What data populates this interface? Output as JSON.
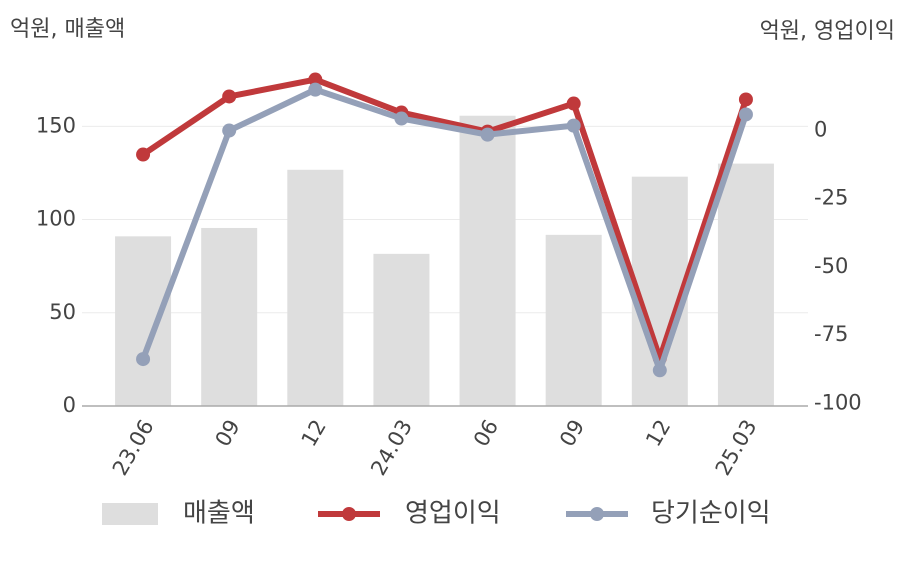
{
  "chart_data": {
    "type": "bar-line",
    "y_axis_label": "억원, 매출액",
    "y2_axis_label": "억원, 영업이익",
    "categories": [
      "23.06",
      "09",
      "12",
      "24.03",
      "06",
      "09",
      "12",
      "25.03"
    ],
    "series": [
      {
        "name": "매출액",
        "type": "bar",
        "color": "#dedede",
        "values": [
          91,
          95.5,
          126.7,
          81.6,
          155.7,
          91.8,
          123,
          130
        ]
      },
      {
        "name": "영업이익",
        "type": "line",
        "axis": "y2",
        "color": "#c0393b",
        "values": [
          -8.8,
          12.5,
          18.7,
          6.6,
          -0.4,
          9.9,
          -83.5,
          11.4
        ]
      },
      {
        "name": "당기순이익",
        "type": "line",
        "axis": "y2",
        "color": "#94a0b8",
        "values": [
          -83.8,
          0,
          15,
          4.4,
          -1.5,
          1.8,
          -87.9,
          5.9
        ]
      }
    ],
    "ylim": [
      0,
      177
    ],
    "yticks": [
      0,
      50,
      100,
      150
    ],
    "y2lim": [
      -101,
      20
    ],
    "y2ticks": [
      -100,
      -75,
      -50,
      -25,
      0
    ],
    "grid": true
  }
}
